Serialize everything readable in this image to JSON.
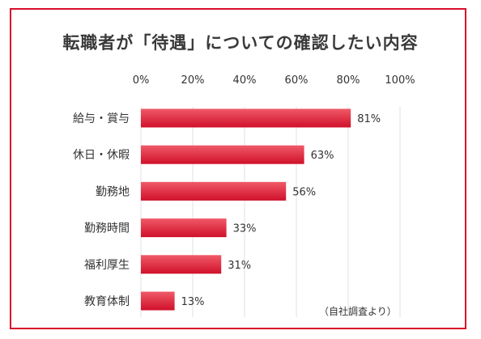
{
  "colors": {
    "border": "#d8102a",
    "bar_light": "#f05a68",
    "bar_dark": "#d0102a",
    "grid": "#e2e2e2"
  },
  "source_note": "（自社調査より）",
  "chart_data": {
    "type": "bar",
    "orientation": "horizontal",
    "title": "転職者が「待遇」についての確認したい内容",
    "categories": [
      "給与・賞与",
      "休日・休暇",
      "勤務地",
      "勤務時間",
      "福利厚生",
      "教育体制"
    ],
    "values": [
      81,
      63,
      56,
      33,
      31,
      13
    ],
    "data_labels": [
      "81%",
      "63%",
      "56%",
      "33%",
      "31%",
      "13%"
    ],
    "x_ticks": [
      "0%",
      "20%",
      "40%",
      "60%",
      "80%",
      "100%"
    ],
    "x_tick_values": [
      0,
      20,
      40,
      60,
      80,
      100
    ],
    "xlim": [
      0,
      100
    ],
    "grid": true,
    "legend": "none"
  }
}
